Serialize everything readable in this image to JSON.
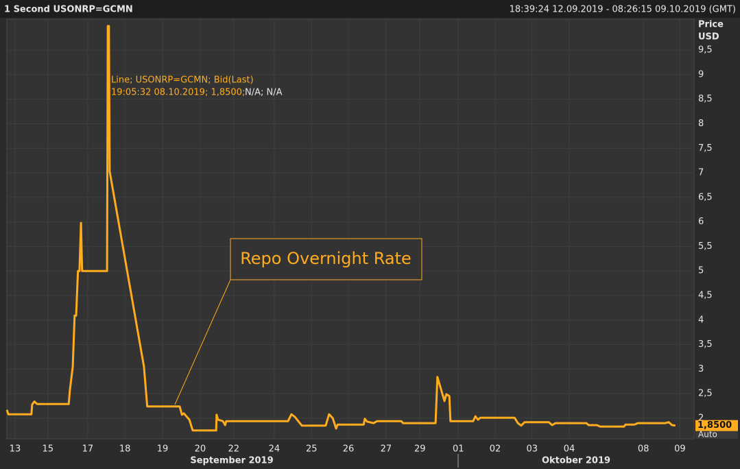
{
  "header": {
    "title": "1 Second USONRP=GCMN",
    "range": "18:39:24 12.09.2019 - 08:26:15 09.10.2019 (GMT)"
  },
  "chart_data": {
    "type": "line",
    "y_label": "Price",
    "y_unit": "USD",
    "x": [
      -0.22,
      -0.18,
      0.44,
      0.46,
      0.52,
      0.59,
      1.44,
      1.47,
      1.55,
      1.6,
      1.64,
      1.69,
      1.73,
      1.77,
      1.8,
      2.47,
      2.49,
      2.52,
      2.54,
      3.46,
      3.55,
      4.42,
      4.48,
      4.53,
      4.6,
      4.68,
      4.77,
      5.4,
      5.41,
      5.45,
      5.58,
      5.64,
      5.67,
      7.33,
      7.42,
      7.51,
      7.7,
      8.34,
      8.43,
      8.53,
      8.62,
      8.66,
      9.36,
      9.39,
      9.45,
      9.63,
      9.72,
      10.37,
      10.42,
      11.29,
      11.34,
      11.42,
      11.53,
      11.58,
      11.66,
      11.69,
      12.3,
      12.36,
      12.43,
      12.49,
      13.41,
      13.5,
      13.59,
      13.68,
      14.33,
      14.42,
      14.51,
      15.34,
      15.4,
      15.62,
      15.71,
      16.35,
      16.39,
      16.63,
      16.72,
      17.46,
      17.55,
      17.64,
      17.73
    ],
    "series": [
      {
        "name": "Line; USONRP=GCMN; Bid(Last)",
        "color": "#ffad1f",
        "values": [
          2.17,
          2.08,
          2.08,
          2.28,
          2.34,
          2.29,
          2.29,
          2.56,
          3.05,
          4.09,
          4.09,
          5.0,
          5.0,
          5.98,
          5.0,
          5.0,
          9.99,
          9.99,
          7.03,
          3.05,
          2.24,
          2.24,
          2.07,
          2.1,
          2.04,
          1.97,
          1.75,
          1.75,
          2.07,
          1.97,
          1.94,
          1.86,
          1.94,
          1.94,
          2.08,
          2.03,
          1.85,
          1.85,
          2.08,
          2.0,
          1.79,
          1.87,
          1.87,
          1.99,
          1.93,
          1.9,
          1.94,
          1.94,
          1.9,
          1.9,
          2.84,
          2.63,
          2.35,
          2.49,
          2.45,
          1.94,
          1.94,
          2.04,
          1.97,
          2.01,
          2.01,
          1.9,
          1.85,
          1.92,
          1.92,
          1.86,
          1.9,
          1.9,
          1.86,
          1.86,
          1.83,
          1.83,
          1.87,
          1.87,
          1.9,
          1.9,
          1.92,
          1.86,
          1.85
        ]
      }
    ],
    "tooltip_time_value": "19:05:32 08.10.2019; 1,8500;",
    "tooltip_extra": "N/A; N/A",
    "last_value_label": "1,8500",
    "annotation": "Repo Overnight Rate",
    "month_labels": [
      "September 2019",
      "Oktober 2019"
    ],
    "scale_mode": "Auto",
    "xlim": [
      -0.22,
      18.23
    ],
    "ylim": [
      1.58,
      10.13
    ],
    "xticks": [
      {
        "value": 0,
        "label": "13"
      },
      {
        "value": 0.88,
        "label": "15"
      },
      {
        "value": 1.95,
        "label": "17"
      },
      {
        "value": 2.95,
        "label": "18"
      },
      {
        "value": 3.96,
        "label": "19"
      },
      {
        "value": 4.97,
        "label": "20"
      },
      {
        "value": 5.87,
        "label": "22"
      },
      {
        "value": 6.96,
        "label": "24"
      },
      {
        "value": 7.96,
        "label": "25"
      },
      {
        "value": 8.95,
        "label": "26"
      },
      {
        "value": 9.96,
        "label": "27"
      },
      {
        "value": 10.87,
        "label": "29"
      },
      {
        "value": 11.9,
        "label": "01"
      },
      {
        "value": 12.89,
        "label": "02"
      },
      {
        "value": 13.88,
        "label": "03"
      },
      {
        "value": 14.88,
        "label": "04"
      },
      {
        "value": 16.87,
        "label": "08"
      },
      {
        "value": 17.85,
        "label": "09"
      }
    ],
    "yticks": [
      2,
      {
        "value": 2.5,
        "label": "2,5"
      },
      3,
      {
        "value": 3.5,
        "label": "3,5"
      },
      4,
      {
        "value": 4.5,
        "label": "4,5"
      },
      5,
      {
        "value": 5.5,
        "label": "5,5"
      },
      6,
      {
        "value": 6.5,
        "label": "6,5"
      },
      7,
      {
        "value": 7.5,
        "label": "7,5"
      },
      8,
      {
        "value": 8.5,
        "label": "8,5"
      },
      9,
      {
        "value": 9.5,
        "label": "9,5"
      }
    ],
    "grid": true
  }
}
